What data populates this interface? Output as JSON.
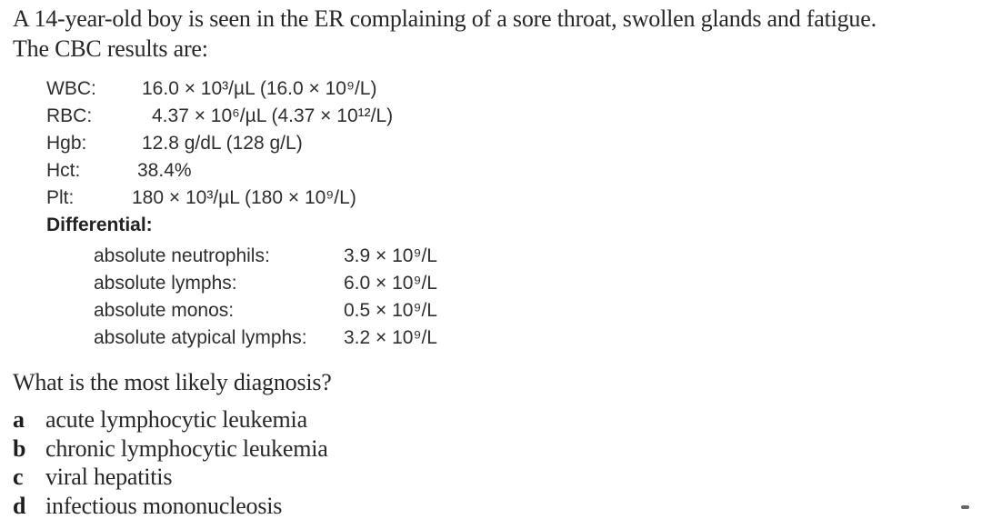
{
  "colors": {
    "background": "#ffffff",
    "ink": "#272727"
  },
  "intro": [
    "A 14-year-old boy is seen in the ER complaining of a sore throat, swollen glands and fatigue.",
    "The CBC results are:"
  ],
  "cbc": {
    "rows": [
      {
        "label": "WBC:",
        "value": "16.0 × 10³/µL (16.0 × 10⁹/L)"
      },
      {
        "label": "RBC:",
        "value": "4.37 × 10⁶/µL (4.37 × 10¹²/L)"
      },
      {
        "label": "Hgb:",
        "value": "12.8 g/dL (128 g/L)"
      },
      {
        "label": "Hct:",
        "value": "38.4%"
      },
      {
        "label": "Plt:",
        "value": "180 × 10³/µL (180 × 10⁹/L)"
      }
    ],
    "differential_heading": "Differential:",
    "differential": [
      {
        "label": "absolute neutrophils:",
        "value": "3.9 × 10⁹/L"
      },
      {
        "label": "absolute lymphs:",
        "value": "6.0 × 10⁹/L"
      },
      {
        "label": "absolute monos:",
        "value": "0.5 × 10⁹/L"
      },
      {
        "label": "absolute atypical lymphs:",
        "value": "3.2 × 10⁹/L"
      }
    ]
  },
  "prompt": "What is the most likely diagnosis?",
  "options": [
    {
      "letter": "a",
      "text": "acute lymphocytic leukemia"
    },
    {
      "letter": "b",
      "text": "chronic lymphocytic leukemia"
    },
    {
      "letter": "c",
      "text": "viral hepatitis"
    },
    {
      "letter": "d",
      "text": "infectious mononucleosis"
    }
  ]
}
